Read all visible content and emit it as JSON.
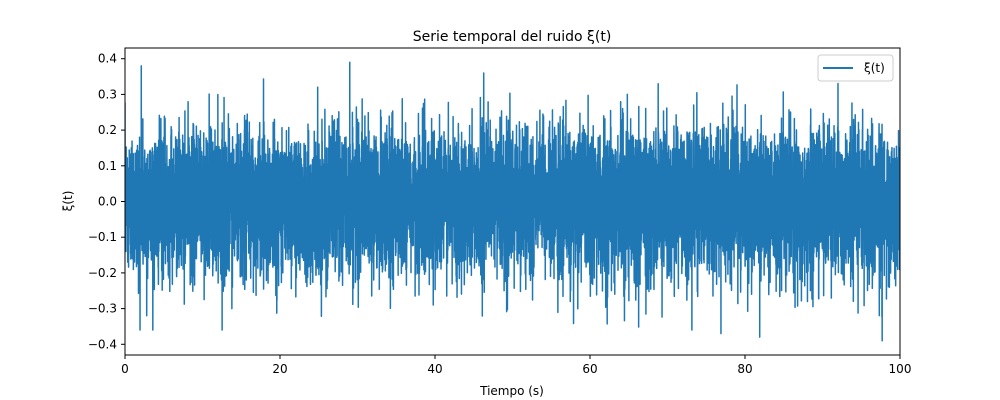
{
  "chart_data": {
    "type": "line",
    "title": "Serie temporal del ruido ξ(t)",
    "xlabel": "Tiempo (s)",
    "ylabel": "ξ(t)",
    "xlim": [
      0,
      100
    ],
    "ylim": [
      -0.43,
      0.43
    ],
    "xticks": [
      0,
      20,
      40,
      60,
      80,
      100
    ],
    "xtick_labels": [
      "0",
      "20",
      "40",
      "60",
      "80",
      "100"
    ],
    "yticks": [
      -0.4,
      -0.3,
      -0.2,
      -0.1,
      0.0,
      0.1,
      0.2,
      0.3,
      0.4
    ],
    "ytick_labels": [
      "−0.4",
      "−0.3",
      "−0.2",
      "−0.1",
      "0.0",
      "0.1",
      "0.2",
      "0.3",
      "0.4"
    ],
    "grid": false,
    "legend_position": "top-right",
    "series": [
      {
        "name": "ξ(t)",
        "color": "#1f77b4",
        "summary": {
          "mean": 0.0,
          "std": 0.1
        },
        "peaks": [
          {
            "x": 2.1,
            "y": 0.38
          },
          {
            "x": 29.0,
            "y": 0.39
          },
          {
            "x": 68.8,
            "y": 0.33
          },
          {
            "x": 2.8,
            "y": -0.32
          },
          {
            "x": 76.9,
            "y": -0.37
          },
          {
            "x": 81.9,
            "y": -0.38
          },
          {
            "x": 97.7,
            "y": -0.39
          }
        ]
      }
    ]
  }
}
